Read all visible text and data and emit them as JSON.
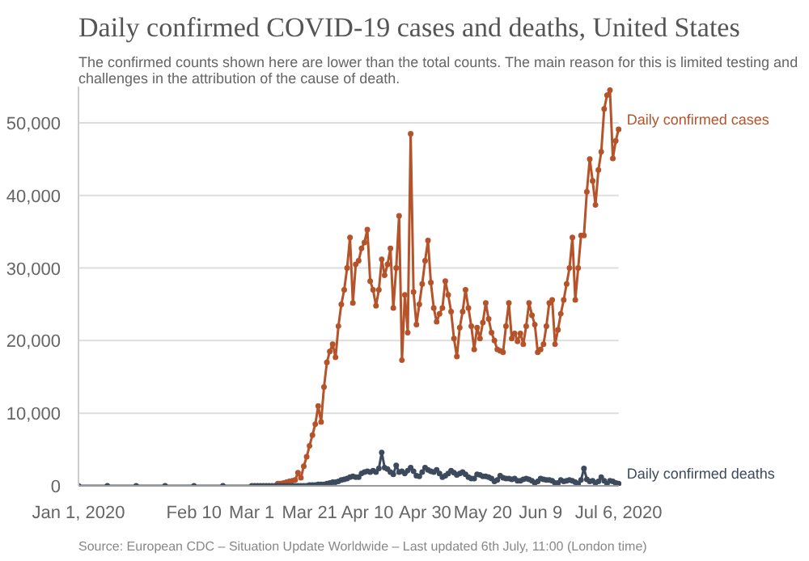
{
  "chart_data": {
    "type": "line",
    "title": "Daily confirmed COVID-19 cases and deaths, United States",
    "subtitle": "The confirmed counts shown here are lower than the total counts. The main reason for this is limited testing and\nchallenges in the attribution of the cause of death.",
    "annotations": [
      "Source: European CDC – Situation Update Worldwide – Last updated 6th July, 11:00 (London time)"
    ],
    "x": [
      "2020-01-01",
      "2020-01-11",
      "2020-01-21",
      "2020-01-31",
      "2020-02-10",
      "2020-02-20",
      "2020-03-01",
      "2020-03-02",
      "2020-03-03",
      "2020-03-04",
      "2020-03-05",
      "2020-03-06",
      "2020-03-07",
      "2020-03-08",
      "2020-03-09",
      "2020-03-10",
      "2020-03-11",
      "2020-03-12",
      "2020-03-13",
      "2020-03-14",
      "2020-03-15",
      "2020-03-16",
      "2020-03-17",
      "2020-03-18",
      "2020-03-19",
      "2020-03-20",
      "2020-03-21",
      "2020-03-22",
      "2020-03-23",
      "2020-03-24",
      "2020-03-25",
      "2020-03-26",
      "2020-03-27",
      "2020-03-28",
      "2020-03-29",
      "2020-03-30",
      "2020-03-31",
      "2020-04-01",
      "2020-04-02",
      "2020-04-03",
      "2020-04-04",
      "2020-04-05",
      "2020-04-06",
      "2020-04-07",
      "2020-04-08",
      "2020-04-09",
      "2020-04-10",
      "2020-04-11",
      "2020-04-12",
      "2020-04-13",
      "2020-04-14",
      "2020-04-15",
      "2020-04-16",
      "2020-04-17",
      "2020-04-18",
      "2020-04-19",
      "2020-04-20",
      "2020-04-21",
      "2020-04-22",
      "2020-04-23",
      "2020-04-24",
      "2020-04-25",
      "2020-04-26",
      "2020-04-27",
      "2020-04-28",
      "2020-04-29",
      "2020-04-30",
      "2020-05-01",
      "2020-05-02",
      "2020-05-03",
      "2020-05-04",
      "2020-05-05",
      "2020-05-06",
      "2020-05-07",
      "2020-05-08",
      "2020-05-09",
      "2020-05-10",
      "2020-05-11",
      "2020-05-12",
      "2020-05-13",
      "2020-05-14",
      "2020-05-15",
      "2020-05-16",
      "2020-05-17",
      "2020-05-18",
      "2020-05-19",
      "2020-05-20",
      "2020-05-21",
      "2020-05-22",
      "2020-05-23",
      "2020-05-24",
      "2020-05-25",
      "2020-05-26",
      "2020-05-27",
      "2020-05-28",
      "2020-05-29",
      "2020-05-30",
      "2020-05-31",
      "2020-06-01",
      "2020-06-02",
      "2020-06-03",
      "2020-06-04",
      "2020-06-05",
      "2020-06-06",
      "2020-06-07",
      "2020-06-08",
      "2020-06-09",
      "2020-06-10",
      "2020-06-11",
      "2020-06-12",
      "2020-06-13",
      "2020-06-14",
      "2020-06-15",
      "2020-06-16",
      "2020-06-17",
      "2020-06-18",
      "2020-06-19",
      "2020-06-20",
      "2020-06-21",
      "2020-06-22",
      "2020-06-23",
      "2020-06-24",
      "2020-06-25",
      "2020-06-26",
      "2020-06-27",
      "2020-06-28",
      "2020-06-29",
      "2020-06-30",
      "2020-07-01",
      "2020-07-02",
      "2020-07-03",
      "2020-07-04",
      "2020-07-05",
      "2020-07-06"
    ],
    "series": [
      {
        "name": "Daily confirmed cases",
        "color": "#b5532a",
        "values": [
          null,
          null,
          null,
          null,
          null,
          null,
          null,
          null,
          null,
          null,
          null,
          null,
          null,
          null,
          null,
          300,
          300,
          400,
          500,
          600,
          700,
          800,
          1800,
          1100,
          2700,
          4000,
          5500,
          7000,
          8500,
          11000,
          8800,
          13600,
          17000,
          18500,
          19500,
          17700,
          22000,
          25000,
          27000,
          30000,
          34200,
          25200,
          30500,
          31000,
          32700,
          33500,
          35300,
          28200,
          27000,
          24800,
          27000,
          31200,
          29000,
          30500,
          32700,
          24500,
          30000,
          37200,
          17300,
          26300,
          21100,
          48500,
          26700,
          22200,
          25000,
          27800,
          31000,
          33800,
          28000,
          24500,
          22600,
          23700,
          24500,
          28200,
          26300,
          24000,
          20300,
          17800,
          21800,
          24000,
          27000,
          24500,
          22000,
          18800,
          21800,
          20300,
          22500,
          25200,
          23000,
          21100,
          20000,
          18800,
          18600,
          18400,
          22000,
          25200,
          20300,
          21000,
          19900,
          21000,
          19500,
          22000,
          25200,
          23500,
          22200,
          18400,
          18800,
          19500,
          22000,
          25200,
          25600,
          19500,
          21500,
          23700,
          25600,
          27800,
          30000,
          34200,
          25600,
          30000,
          34500,
          34500,
          40500,
          45000,
          42000,
          38700,
          43500,
          46000,
          51900,
          53800,
          54500,
          45100,
          47500,
          49100
        ]
      },
      {
        "name": "Daily confirmed deaths",
        "color": "#3d4a5e",
        "values": [
          0,
          0,
          0,
          0,
          0,
          0,
          0,
          0,
          0,
          0,
          0,
          0,
          0,
          0,
          0,
          0,
          0,
          0,
          0,
          0,
          0,
          0,
          0,
          0,
          0,
          0,
          100,
          100,
          100,
          200,
          200,
          200,
          300,
          400,
          500,
          500,
          600,
          800,
          900,
          1000,
          1200,
          1300,
          1200,
          1200,
          1700,
          1900,
          2000,
          1900,
          2100,
          1900,
          2400,
          4600,
          2500,
          2300,
          1900,
          1600,
          2800,
          1900,
          2000,
          1700,
          2100,
          2500,
          2000,
          1400,
          1300,
          1900,
          2500,
          2200,
          2000,
          1900,
          2200,
          1700,
          1200,
          1400,
          1700,
          2100,
          1800,
          1500,
          1700,
          1900,
          1600,
          1200,
          1000,
          1000,
          1600,
          1500,
          1300,
          1300,
          1200,
          1000,
          600,
          800,
          1400,
          1100,
          1000,
          1000,
          900,
          1000,
          700,
          700,
          900,
          1000,
          900,
          700,
          400,
          600,
          1000,
          900,
          800,
          800,
          700,
          400,
          400,
          800,
          600,
          700,
          800,
          700,
          500,
          300,
          800,
          2400,
          900,
          600,
          700,
          400,
          600,
          1200,
          700,
          300,
          700,
          600,
          400,
          300
        ]
      }
    ],
    "xlim": [
      "2020-01-01",
      "2020-07-06"
    ],
    "xticks": [
      {
        "value": "2020-01-01",
        "label": "Jan 1, 2020"
      },
      {
        "value": "2020-02-10",
        "label": "Feb 10"
      },
      {
        "value": "2020-03-01",
        "label": "Mar 1"
      },
      {
        "value": "2020-03-21",
        "label": "Mar 21"
      },
      {
        "value": "2020-04-10",
        "label": "Apr 10"
      },
      {
        "value": "2020-04-30",
        "label": "Apr 30"
      },
      {
        "value": "2020-05-20",
        "label": "May 20"
      },
      {
        "value": "2020-06-09",
        "label": "Jun 9"
      },
      {
        "value": "2020-07-06",
        "label": "Jul 6, 2020"
      }
    ],
    "ylim": [
      0,
      55000
    ],
    "yticks": [
      0,
      {
        "value": 10000,
        "label": "10,000"
      },
      {
        "value": 20000,
        "label": "20,000"
      },
      {
        "value": 30000,
        "label": "30,000"
      },
      {
        "value": 40000,
        "label": "40,000"
      },
      {
        "value": 50000,
        "label": "50,000"
      }
    ],
    "grid": "y",
    "marker": "circle",
    "line_style": "solid"
  }
}
